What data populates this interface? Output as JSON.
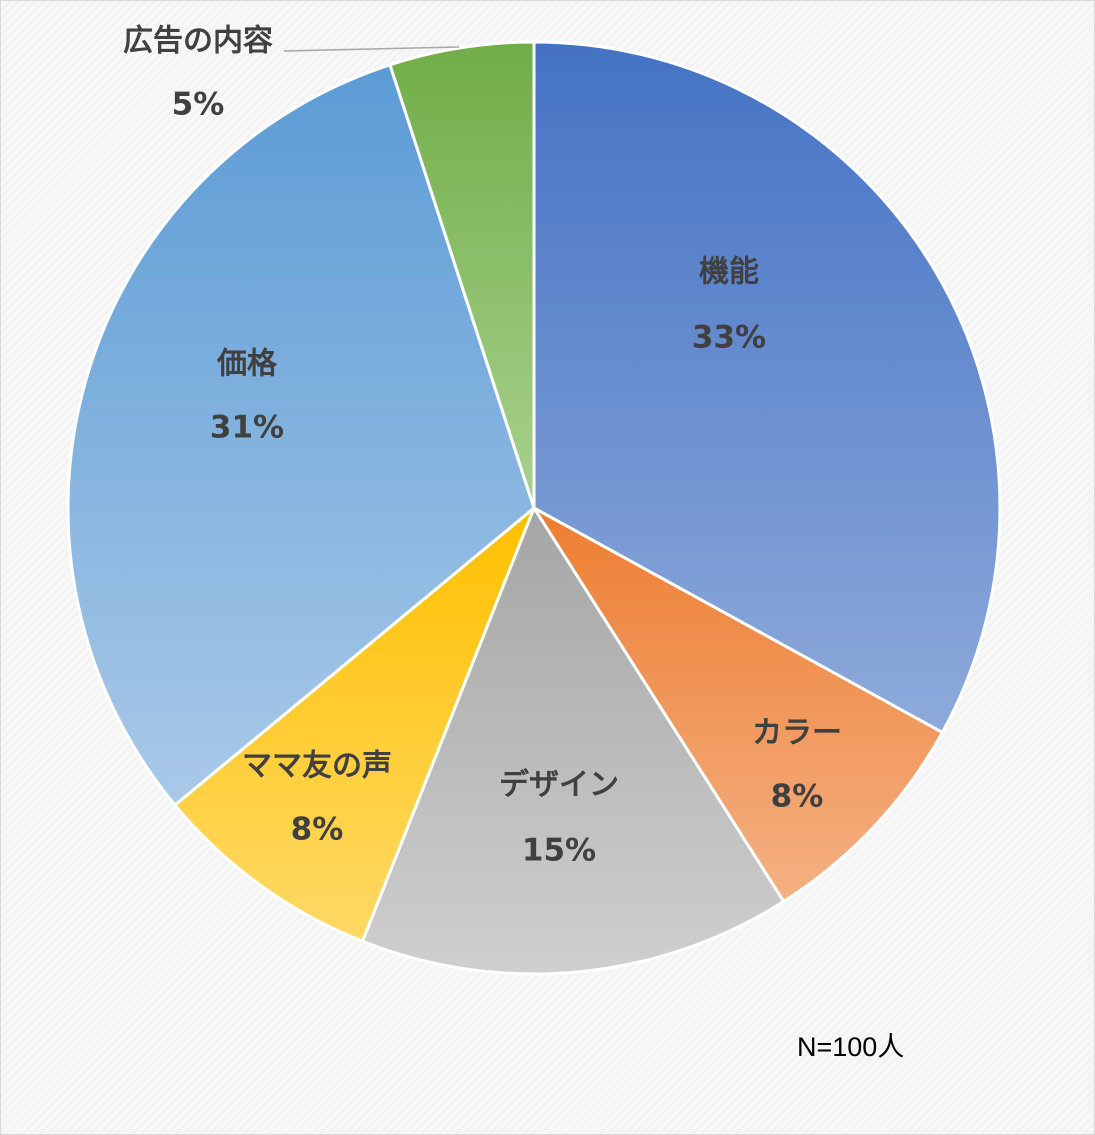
{
  "chart_data": {
    "type": "pie",
    "title": "",
    "slices": [
      {
        "label": "機能",
        "value": 33,
        "value_label": "33%",
        "color_top": "#4472c4",
        "color_bottom": "#8eaadb"
      },
      {
        "label": "カラー",
        "value": 8,
        "value_label": "8%",
        "color_top": "#ed7d31",
        "color_bottom": "#f4b183"
      },
      {
        "label": "デザイン",
        "value": 15,
        "value_label": "15%",
        "color_top": "#a5a5a5",
        "color_bottom": "#cfcfcf"
      },
      {
        "label": "ママ友の声",
        "value": 8,
        "value_label": "8%",
        "color_top": "#ffc000",
        "color_bottom": "#ffd966"
      },
      {
        "label": "価格",
        "value": 31,
        "value_label": "31%",
        "color_top": "#5b9bd5",
        "color_bottom": "#a9c9e8"
      },
      {
        "label": "広告の内容",
        "value": 5,
        "value_label": "5%",
        "color_top": "#70ad47",
        "color_bottom": "#a9d18e"
      }
    ],
    "start_angle": "12 o'clock",
    "direction": "clockwise",
    "label_position": "inside"
  },
  "note": "N=100人"
}
